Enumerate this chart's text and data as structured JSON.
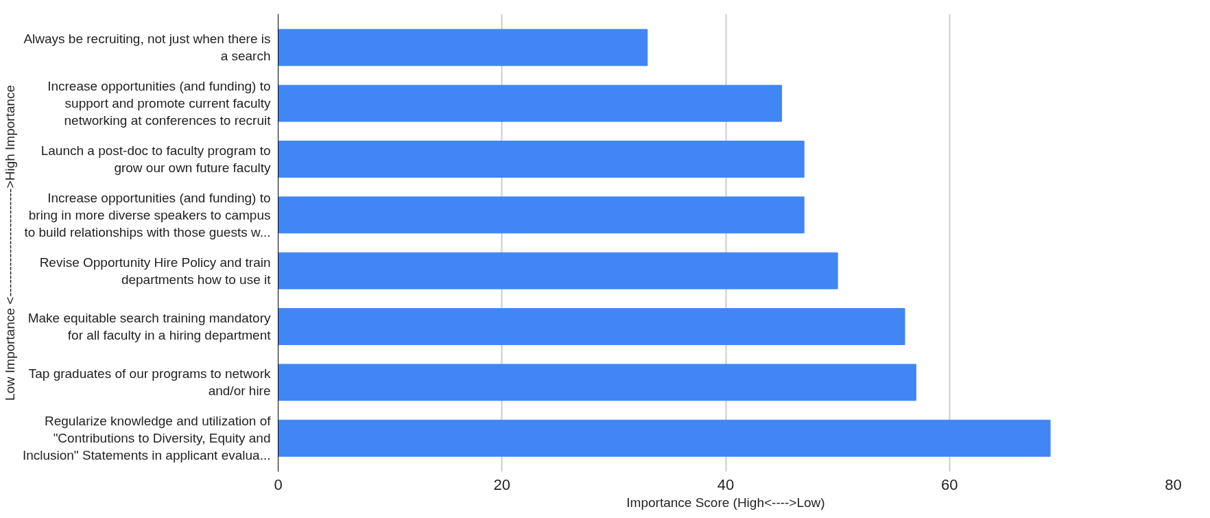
{
  "chart_data": {
    "type": "bar",
    "orientation": "horizontal",
    "categories": [
      "Always be recruiting, not just when there is\na search",
      "Increase opportunities (and funding) to\nsupport and promote current faculty\nnetworking at conferences to recruit",
      "Launch a post-doc to faculty program to\ngrow our own future faculty",
      "Increase opportunities (and funding) to\nbring in more diverse speakers to campus\nto build relationships with those guests w...",
      "Revise Opportunity Hire Policy and train\ndepartments how to use it",
      "Make equitable search training mandatory\nfor all faculty in a hiring department",
      "Tap graduates of our programs to network\nand/or hire",
      "Regularize knowledge and utilization of\n\"Contributions to Diversity, Equity and\nInclusion\" Statements in applicant evalua..."
    ],
    "values": [
      33,
      45,
      47,
      47,
      50,
      56,
      57,
      69
    ],
    "color": "#4285f4",
    "xlim": [
      0,
      80
    ],
    "xticks": [
      0,
      20,
      40,
      60,
      80
    ],
    "xlabel": "Importance Score (High<---->Low)",
    "ylabel": "Low Importance <------------------------->High Importance",
    "grid": "x"
  }
}
